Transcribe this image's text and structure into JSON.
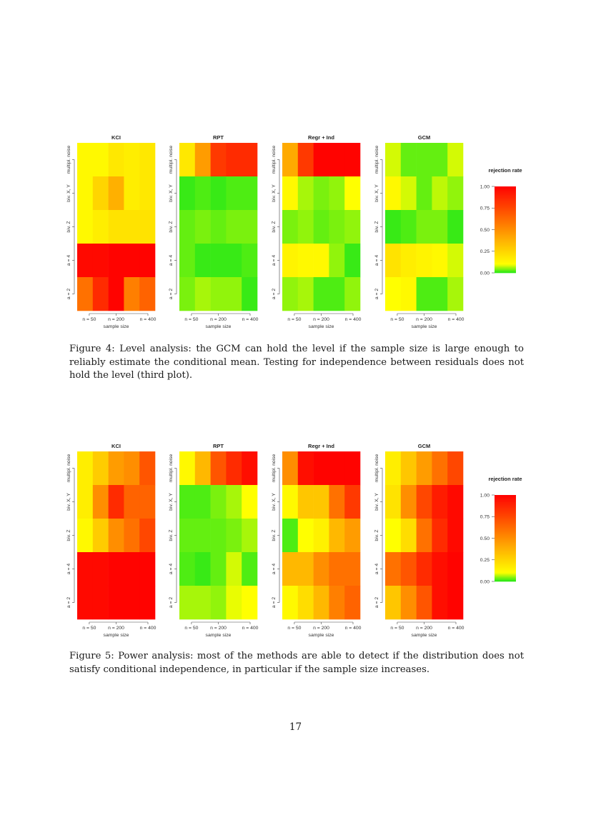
{
  "figures": [
    {
      "id": "fig4",
      "caption": "Figure 4: Level analysis: the GCM can hold the level if the sample size is large enough to reliably estimate the conditional mean. Testing for independence between residuals does not hold the level (third plot).",
      "chart_data": {
        "type": "heatmap",
        "rows": [
          "multipl. noise",
          "biv. X, Y",
          "biv. Z",
          "a = 4",
          "a = 2"
        ],
        "column_ticks": [
          "n = 50",
          "n = 200",
          "n = 400"
        ],
        "xlabel": "sample size",
        "panels": [
          {
            "title": "KCI",
            "values": [
              [
                0.12,
                0.12,
                0.18,
                0.16,
                0.18
              ],
              [
                0.12,
                0.25,
                0.38,
                0.16,
                0.18
              ],
              [
                0.12,
                0.16,
                0.2,
                0.2,
                0.2
              ],
              [
                0.97,
                0.97,
                0.99,
                0.99,
                0.99
              ],
              [
                0.6,
                0.85,
                0.99,
                0.55,
                0.65
              ]
            ]
          },
          {
            "title": "RPT",
            "values": [
              [
                0.18,
                0.45,
                0.8,
                0.85,
                0.85
              ],
              [
                0.01,
                0.02,
                0.01,
                0.02,
                0.02
              ],
              [
                0.03,
                0.04,
                0.03,
                0.04,
                0.04
              ],
              [
                0.03,
                0.01,
                0.01,
                0.01,
                0.02
              ],
              [
                0.04,
                0.06,
                0.05,
                0.05,
                0.01
              ]
            ]
          },
          {
            "title": "Regr + Ind",
            "values": [
              [
                0.4,
                0.8,
                0.99,
                0.99,
                0.99
              ],
              [
                0.12,
                0.06,
                0.04,
                0.05,
                0.1
              ],
              [
                0.04,
                0.05,
                0.03,
                0.04,
                0.05
              ],
              [
                0.14,
                0.12,
                0.12,
                0.05,
                0.01
              ],
              [
                0.05,
                0.06,
                0.02,
                0.02,
                0.05
              ]
            ]
          },
          {
            "title": "GCM",
            "values": [
              [
                0.08,
                0.03,
                0.03,
                0.03,
                0.08
              ],
              [
                0.12,
                0.08,
                0.03,
                0.07,
                0.05
              ],
              [
                0.01,
                0.02,
                0.04,
                0.04,
                0.01
              ],
              [
                0.2,
                0.16,
                0.14,
                0.12,
                0.08
              ],
              [
                0.1,
                0.12,
                0.02,
                0.02,
                0.06
              ]
            ]
          }
        ],
        "legend": {
          "title": "rejection rate",
          "ticks": [
            "1.00",
            "0.75",
            "0.50",
            "0.25",
            "0.00"
          ],
          "placement": "right"
        },
        "color_scale": {
          "low": "#22e818",
          "mid": "#ffff00",
          "high": "#ff0000"
        }
      }
    },
    {
      "id": "fig5",
      "caption": "Figure 5: Power analysis: most of the methods are able to detect if the distribution does not satisfy conditional independence, in particular if the sample size increases.",
      "chart_data": {
        "type": "heatmap",
        "rows": [
          "multipl. noise",
          "biv. X, Y",
          "biv. Z",
          "a = 4",
          "a = 2"
        ],
        "column_ticks": [
          "n = 50",
          "n = 200",
          "n = 400"
        ],
        "xlabel": "sample size",
        "panels": [
          {
            "title": "KCI",
            "values": [
              [
                0.16,
                0.28,
                0.45,
                0.5,
                0.7
              ],
              [
                0.16,
                0.5,
                0.85,
                0.65,
                0.65
              ],
              [
                0.12,
                0.28,
                0.5,
                0.6,
                0.75
              ],
              [
                0.97,
                0.97,
                0.99,
                0.99,
                0.99
              ],
              [
                0.97,
                0.97,
                0.99,
                0.99,
                0.99
              ]
            ]
          },
          {
            "title": "RPT",
            "values": [
              [
                0.12,
                0.35,
                0.7,
                0.85,
                0.95
              ],
              [
                0.02,
                0.02,
                0.04,
                0.06,
                0.1
              ],
              [
                0.03,
                0.03,
                0.03,
                0.04,
                0.06
              ],
              [
                0.02,
                0.01,
                0.03,
                0.08,
                0.02
              ],
              [
                0.06,
                0.06,
                0.05,
                0.09,
                0.1
              ]
            ]
          },
          {
            "title": "Regr + Ind",
            "values": [
              [
                0.5,
                0.95,
                0.99,
                0.99,
                0.99
              ],
              [
                0.12,
                0.3,
                0.3,
                0.6,
                0.8
              ],
              [
                0.02,
                0.1,
                0.15,
                0.35,
                0.45
              ],
              [
                0.35,
                0.35,
                0.5,
                0.6,
                0.6
              ],
              [
                0.12,
                0.22,
                0.35,
                0.55,
                0.65
              ]
            ]
          },
          {
            "title": "GCM",
            "values": [
              [
                0.16,
                0.3,
                0.45,
                0.6,
                0.75
              ],
              [
                0.2,
                0.5,
                0.75,
                0.9,
                0.97
              ],
              [
                0.1,
                0.22,
                0.6,
                0.85,
                0.97
              ],
              [
                0.6,
                0.7,
                0.85,
                0.95,
                0.99
              ],
              [
                0.3,
                0.5,
                0.7,
                0.95,
                0.99
              ]
            ]
          }
        ],
        "legend": {
          "title": "rejection rate",
          "ticks": [
            "1.00",
            "0.75",
            "0.50",
            "0.25",
            "0.00"
          ],
          "placement": "right"
        },
        "color_scale": {
          "low": "#22e818",
          "mid": "#ffff00",
          "high": "#ff0000"
        }
      }
    }
  ],
  "page_number": "17"
}
